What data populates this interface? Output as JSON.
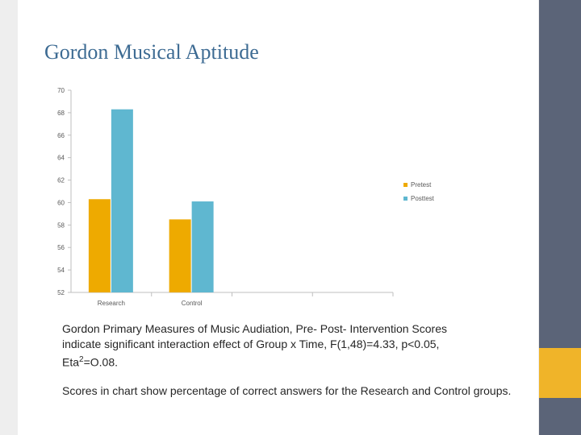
{
  "slide": {
    "title": "Gordon Musical Aptitude",
    "caption_line1": "Gordon Primary Measures of Music Audiation, Pre-  Post- Intervention Scores",
    "caption_line2": "indicate significant interaction effect of Group x Time, F(1,48)=4.33, p<0.05,",
    "caption_eta": "Eta",
    "caption_eta_sup": "2",
    "caption_eta_value": "=O.08.",
    "note": "Scores in chart show percentage of correct answers for the Research and Control groups."
  },
  "colors": {
    "background": "#ffffff",
    "title": "#3d6b93",
    "right_bar": "#5b6478",
    "accent": "#f0b429",
    "pretest": "#eeaa00",
    "posttest": "#5fb7d0",
    "axis": "#bfbfbf"
  },
  "chart_data": {
    "type": "bar",
    "categories": [
      "Research",
      "Control",
      "",
      ""
    ],
    "series": [
      {
        "name": "Pretest",
        "values": [
          60.3,
          58.5,
          null,
          null
        ],
        "color": "#eeaa00"
      },
      {
        "name": "Posttest",
        "values": [
          68.3,
          60.1,
          null,
          null
        ],
        "color": "#5fb7d0"
      }
    ],
    "title": "",
    "xlabel": "",
    "ylabel": "",
    "ylim": [
      52,
      70
    ],
    "yticks": [
      52,
      54,
      56,
      58,
      60,
      62,
      64,
      66,
      68,
      70
    ],
    "grid": false,
    "legend": "right"
  }
}
